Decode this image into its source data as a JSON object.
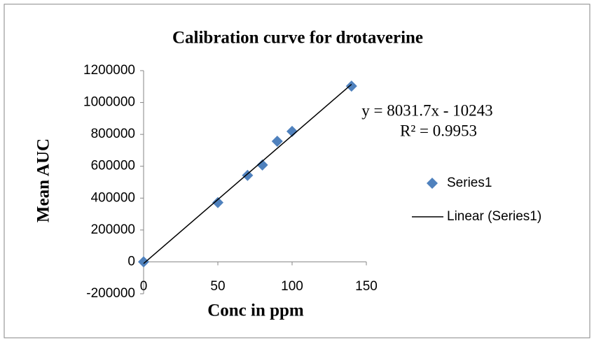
{
  "chart_data": {
    "type": "scatter",
    "title": "Calibration curve for drotaverine",
    "x_label": "Conc in ppm",
    "y_label": "Mean AUC",
    "series": [
      {
        "name": "Series1",
        "color": "#4f81bd",
        "marker": "diamond",
        "x": [
          0,
          50,
          70,
          80,
          90,
          100,
          140
        ],
        "values": [
          0,
          372000,
          543000,
          608000,
          757000,
          819000,
          1103000
        ]
      },
      {
        "name": "Linear (Series1)",
        "color": "#000000",
        "marker": "line",
        "x": [
          0,
          140
        ],
        "values": [
          -10243,
          1114195
        ]
      }
    ],
    "annotations": [
      "y = 8031.7x - 10243",
      "R² = 0.9953"
    ],
    "xlim": [
      0,
      150
    ],
    "xticks": [
      0,
      50,
      100,
      150
    ],
    "ylim": [
      -200000,
      1200000
    ],
    "yticks": [
      -200000,
      0,
      200000,
      400000,
      600000,
      800000,
      1000000,
      1200000
    ],
    "grid": false,
    "legend": "right"
  }
}
